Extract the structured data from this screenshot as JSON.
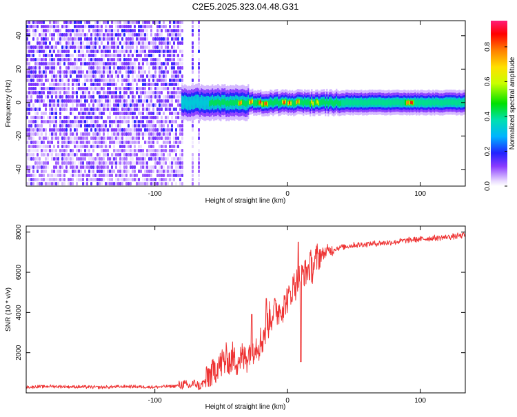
{
  "title": "C2E5.2025.323.04.48.G31",
  "chart_data": [
    {
      "type": "heatmap",
      "xlabel": "Height of straight line (km)",
      "ylabel": "Frequency (Hz)",
      "xlim": [
        -197,
        134
      ],
      "ylim": [
        -50,
        49
      ],
      "xticks": [
        -100,
        0,
        100
      ],
      "xtick_labels": [
        "-100",
        "0",
        "100"
      ],
      "yticks": [
        -40,
        -20,
        0,
        20,
        40
      ],
      "ytick_labels": [
        "-40",
        "-20",
        "0",
        "20",
        "40"
      ],
      "colorbar": {
        "label": "Normalized spectral amplitude",
        "ticks": [
          0.0,
          0.2,
          0.4,
          0.6,
          0.8
        ],
        "tick_labels": [
          "0.0",
          "0.2",
          "0.4",
          "0.6",
          "0.8"
        ],
        "range": [
          0,
          0.95
        ]
      },
      "regions": [
        {
          "name": "noise",
          "x_from": -197,
          "x_to": -63,
          "description_level": 0.15
        },
        {
          "name": "signal",
          "x_from": -80,
          "x_to": 134,
          "center_freq_hz": 0,
          "halfwidth_hz": 4
        },
        {
          "name": "gaps",
          "x_values": [
            -78,
            -74.5,
            -70.5,
            -66
          ]
        }
      ],
      "signal_peaks": [
        {
          "x": -36,
          "amplitude": 0.85
        },
        {
          "x": -28,
          "amplitude": 0.85
        },
        {
          "x": -21,
          "amplitude": 0.95
        },
        {
          "x": -17,
          "amplitude": 0.9
        },
        {
          "x": -3,
          "amplitude": 0.9
        },
        {
          "x": 1,
          "amplitude": 0.9
        },
        {
          "x": 7,
          "amplitude": 0.85
        },
        {
          "x": 18,
          "amplitude": 0.75
        },
        {
          "x": 22,
          "amplitude": 0.7
        },
        {
          "x": 90,
          "amplitude": 0.85
        },
        {
          "x": 93,
          "amplitude": 0.95
        }
      ]
    },
    {
      "type": "line",
      "series_name": "SNR",
      "color": "#ee3333",
      "xlabel": "Height of straight line (km)",
      "ylabel": "SNR (10 * v/v)",
      "xlim": [
        -197,
        134
      ],
      "ylim": [
        0,
        8300
      ],
      "xticks": [
        -100,
        0,
        100
      ],
      "xtick_labels": [
        "-100",
        "0",
        "100"
      ],
      "yticks": [
        2000,
        4000,
        6000,
        8000
      ],
      "ytick_labels": [
        "2000",
        "4000",
        "6000",
        "8000"
      ],
      "x": [
        -197,
        -180,
        -160,
        -140,
        -120,
        -100,
        -90,
        -82,
        -78,
        -74,
        -70,
        -66,
        -60,
        -55,
        -50,
        -45,
        -40,
        -35,
        -30,
        -25,
        -20,
        -15,
        -10,
        -5,
        0,
        5,
        10,
        15,
        20,
        25,
        30,
        35,
        40,
        50,
        60,
        70,
        80,
        90,
        100,
        110,
        120,
        134
      ],
      "y": [
        280,
        330,
        300,
        280,
        320,
        290,
        320,
        360,
        420,
        330,
        480,
        300,
        750,
        1150,
        1500,
        1650,
        1700,
        1650,
        1900,
        2400,
        2500,
        3500,
        4100,
        4200,
        4600,
        5400,
        5900,
        6100,
        6400,
        6850,
        7050,
        7150,
        7250,
        7350,
        7400,
        7450,
        7500,
        7600,
        7650,
        7700,
        7750,
        7850
      ],
      "spikes": [
        {
          "x": -27,
          "y": 3900
        },
        {
          "x": -16,
          "y": 4700
        },
        {
          "x": 8,
          "y": 7500
        },
        {
          "x": 10,
          "y": 1550
        }
      ]
    }
  ]
}
